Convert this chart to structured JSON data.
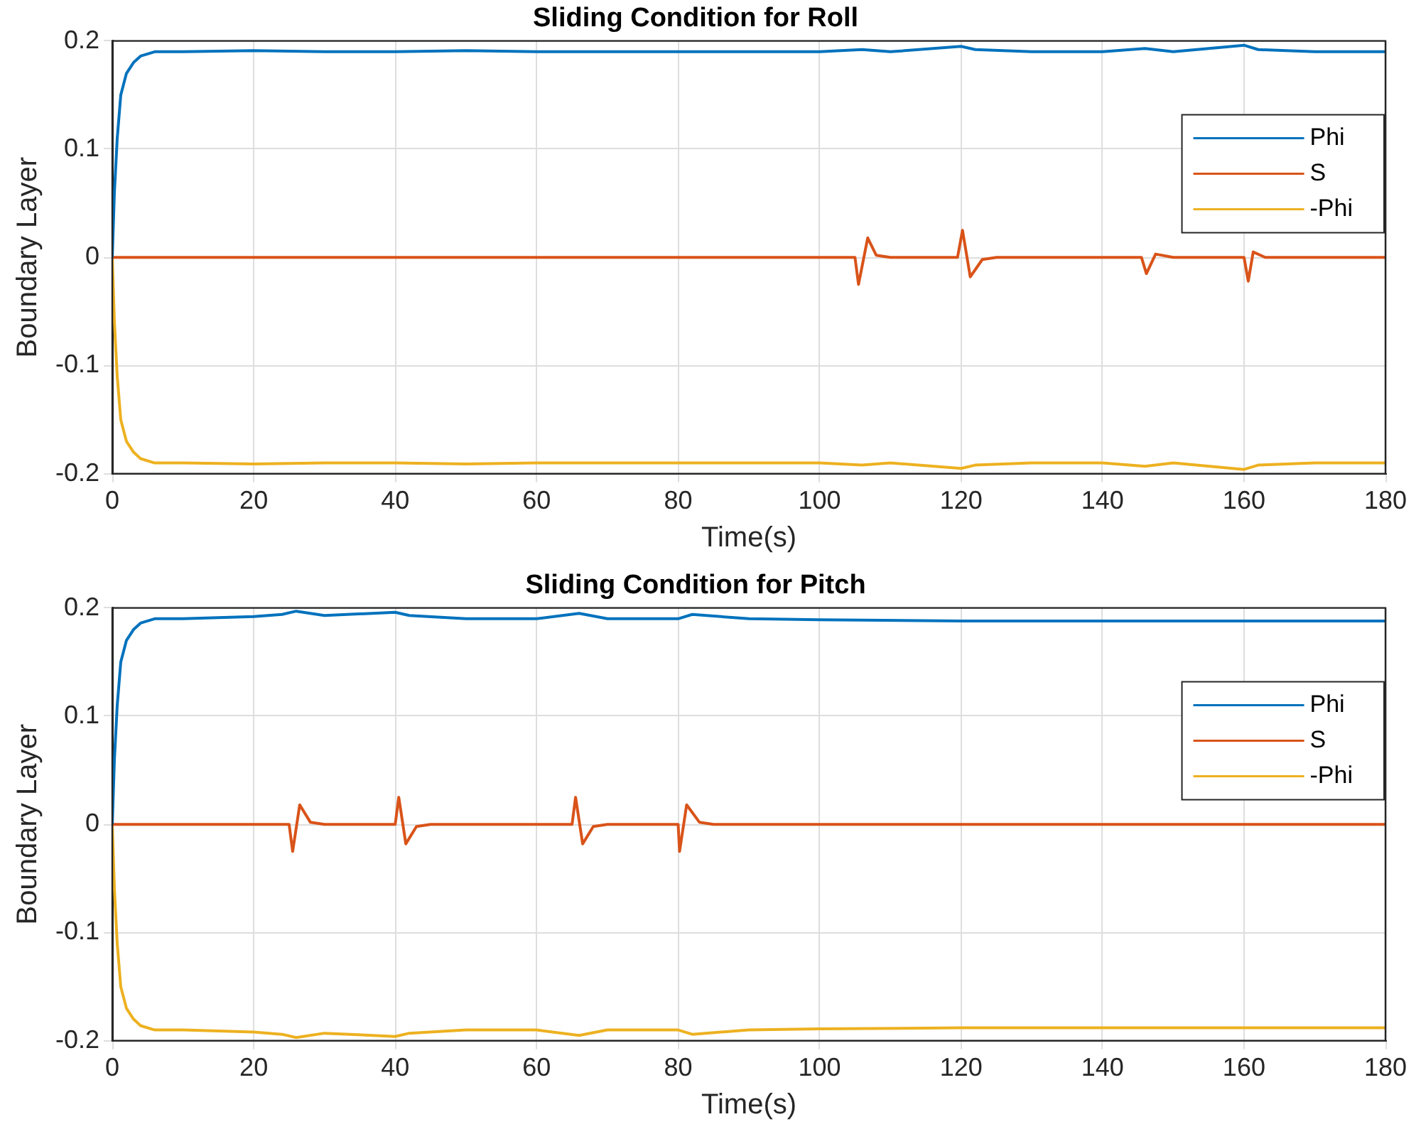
{
  "chart_data": [
    {
      "type": "line",
      "title": "Sliding Condition for Roll",
      "xlabel": "Time(s)",
      "ylabel": "Boundary Layer",
      "xlim": [
        0,
        180
      ],
      "xticks": [
        0,
        20,
        40,
        60,
        80,
        100,
        120,
        140,
        160,
        180
      ],
      "ylim": [
        -0.2,
        0.2
      ],
      "yticks": [
        -0.2,
        -0.1,
        0,
        0.1,
        0.2
      ],
      "grid": true,
      "legend": "top right",
      "marker": "none",
      "line_style": "solid",
      "series": [
        {
          "name": "Phi",
          "color": "#0072bd",
          "x": [
            0,
            0.3,
            0.7,
            1.2,
            2,
            3,
            4,
            6,
            10,
            20,
            30,
            40,
            50,
            60,
            70,
            80,
            90,
            100,
            106,
            110,
            120,
            122,
            130,
            140,
            146,
            150,
            160,
            162,
            170,
            180
          ],
          "values": [
            0,
            0.06,
            0.11,
            0.15,
            0.17,
            0.18,
            0.186,
            0.19,
            0.19,
            0.191,
            0.19,
            0.19,
            0.191,
            0.19,
            0.19,
            0.19,
            0.19,
            0.19,
            0.192,
            0.19,
            0.195,
            0.192,
            0.19,
            0.19,
            0.193,
            0.19,
            0.196,
            0.192,
            0.19,
            0.19
          ]
        },
        {
          "name": "S",
          "color": "#d95319",
          "x": [
            0,
            20,
            40,
            60,
            80,
            105,
            105.5,
            106.8,
            108,
            110,
            119.5,
            120.2,
            121.3,
            123,
            125,
            145.5,
            146.2,
            147.5,
            150,
            160,
            160.6,
            161.3,
            163,
            180
          ],
          "values": [
            0,
            0,
            0,
            0,
            0,
            0,
            -0.025,
            0.018,
            0.002,
            0,
            0,
            0.025,
            -0.018,
            -0.002,
            0,
            0,
            -0.015,
            0.003,
            0,
            0,
            -0.022,
            0.005,
            0,
            0
          ]
        },
        {
          "name": "-Phi",
          "color": "#edb120",
          "x": [
            0,
            0.3,
            0.7,
            1.2,
            2,
            3,
            4,
            6,
            10,
            20,
            30,
            40,
            50,
            60,
            70,
            80,
            90,
            100,
            106,
            110,
            120,
            122,
            130,
            140,
            146,
            150,
            160,
            162,
            170,
            180
          ],
          "values": [
            0,
            -0.06,
            -0.11,
            -0.15,
            -0.17,
            -0.18,
            -0.186,
            -0.19,
            -0.19,
            -0.191,
            -0.19,
            -0.19,
            -0.191,
            -0.19,
            -0.19,
            -0.19,
            -0.19,
            -0.19,
            -0.192,
            -0.19,
            -0.195,
            -0.192,
            -0.19,
            -0.19,
            -0.193,
            -0.19,
            -0.196,
            -0.192,
            -0.19,
            -0.19
          ]
        }
      ]
    },
    {
      "type": "line",
      "title": "Sliding Condition for Pitch",
      "xlabel": "Time(s)",
      "ylabel": "Boundary Layer",
      "xlim": [
        0,
        180
      ],
      "xticks": [
        0,
        20,
        40,
        60,
        80,
        100,
        120,
        140,
        160,
        180
      ],
      "ylim": [
        -0.2,
        0.2
      ],
      "yticks": [
        -0.2,
        -0.1,
        0,
        0.1,
        0.2
      ],
      "grid": true,
      "legend": "top right",
      "marker": "none",
      "line_style": "solid",
      "series": [
        {
          "name": "Phi",
          "color": "#0072bd",
          "x": [
            0,
            0.3,
            0.7,
            1.2,
            2,
            3,
            4,
            6,
            10,
            20,
            24,
            26,
            30,
            40,
            42,
            50,
            60,
            66,
            70,
            80,
            82,
            90,
            100,
            120,
            140,
            160,
            180
          ],
          "values": [
            0,
            0.06,
            0.11,
            0.15,
            0.17,
            0.18,
            0.186,
            0.19,
            0.19,
            0.192,
            0.194,
            0.197,
            0.193,
            0.196,
            0.193,
            0.19,
            0.19,
            0.195,
            0.19,
            0.19,
            0.194,
            0.19,
            0.189,
            0.188,
            0.188,
            0.188,
            0.188
          ]
        },
        {
          "name": "S",
          "color": "#d95319",
          "x": [
            0,
            20,
            25,
            25.5,
            26.5,
            28,
            30,
            40,
            40.5,
            41.5,
            43,
            45,
            65,
            65.5,
            66.5,
            68,
            70,
            80,
            80.2,
            81.2,
            83,
            85,
            100,
            140,
            180
          ],
          "values": [
            0,
            0,
            0,
            -0.025,
            0.018,
            0.002,
            0,
            0,
            0.025,
            -0.018,
            -0.002,
            0,
            0,
            0.025,
            -0.018,
            -0.002,
            0,
            0,
            -0.025,
            0.018,
            0.002,
            0,
            0,
            0,
            0
          ]
        },
        {
          "name": "-Phi",
          "color": "#edb120",
          "x": [
            0,
            0.3,
            0.7,
            1.2,
            2,
            3,
            4,
            6,
            10,
            20,
            24,
            26,
            30,
            40,
            42,
            50,
            60,
            66,
            70,
            80,
            82,
            90,
            100,
            120,
            140,
            160,
            180
          ],
          "values": [
            0,
            -0.06,
            -0.11,
            -0.15,
            -0.17,
            -0.18,
            -0.186,
            -0.19,
            -0.19,
            -0.192,
            -0.194,
            -0.197,
            -0.193,
            -0.196,
            -0.193,
            -0.19,
            -0.19,
            -0.195,
            -0.19,
            -0.19,
            -0.194,
            -0.19,
            -0.189,
            -0.188,
            -0.188,
            -0.188,
            -0.188
          ]
        }
      ]
    }
  ]
}
